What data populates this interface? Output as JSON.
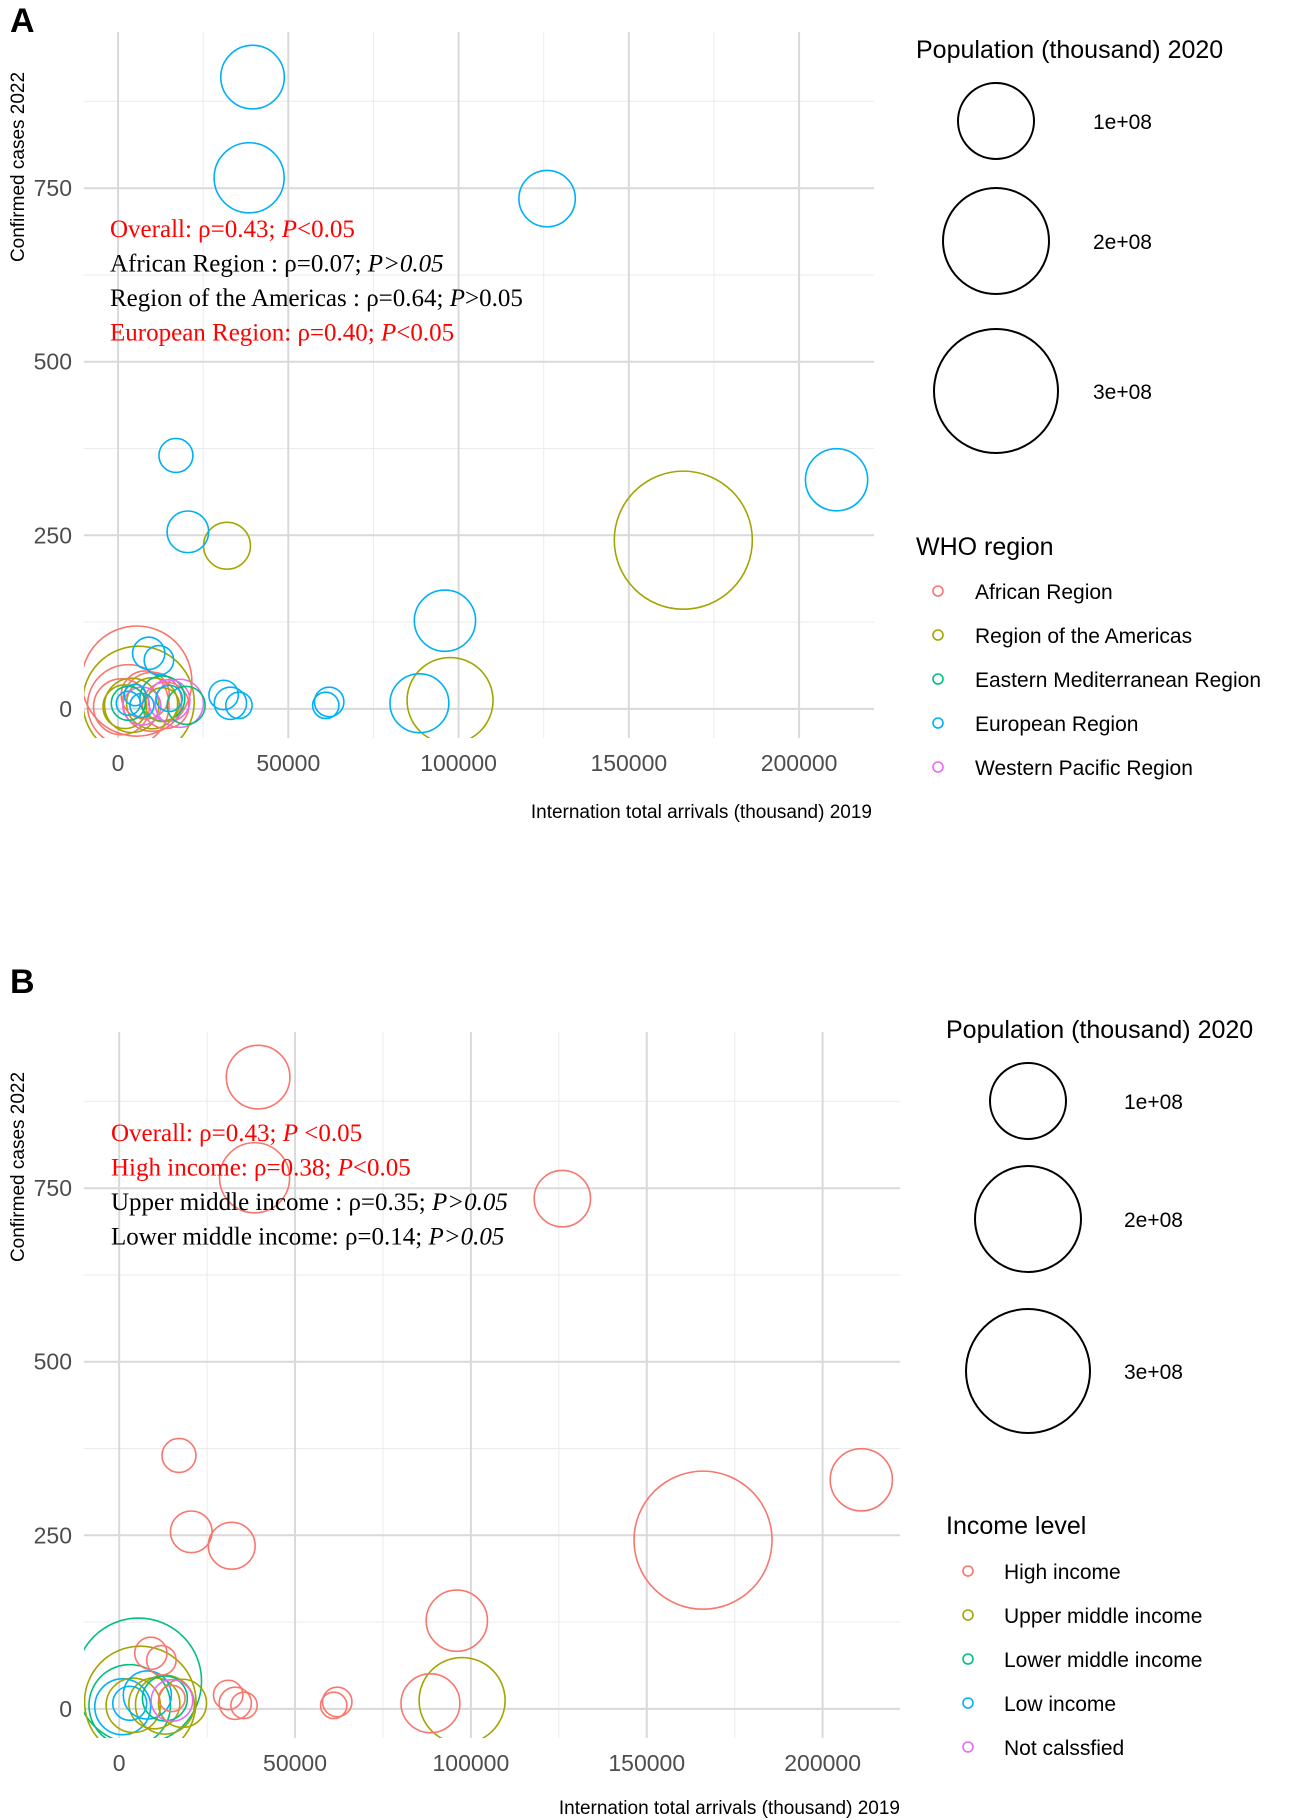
{
  "chart_data": [
    {
      "panel": "A",
      "type": "scatter",
      "xlabel": "Internation total arrivals (thousand) 2019",
      "ylabel": "Confirmed cases 2022",
      "xticks": [
        0,
        50000,
        100000,
        150000,
        200000
      ],
      "xtick_labels": [
        "0",
        "50000",
        "100000",
        "150000",
        "200000"
      ],
      "yticks": [
        0,
        250,
        500,
        750
      ],
      "ytick_labels": [
        "0",
        "250",
        "500",
        "750"
      ],
      "xlim": [
        -10000,
        222000
      ],
      "ylim": [
        -42,
        975
      ],
      "grid": true,
      "size_legend": {
        "title": "Population (thousand) 2020",
        "entries": [
          {
            "label": "1e+08",
            "value": 100000000
          },
          {
            "label": "2e+08",
            "value": 200000000
          },
          {
            "label": "3e+08",
            "value": 300000000
          }
        ]
      },
      "color_legend": {
        "title": "WHO region",
        "entries": [
          {
            "label": "African Region",
            "color": "#F8766D"
          },
          {
            "label": "Region of the Americas",
            "color": "#A3A500"
          },
          {
            "label": "Eastern Mediterranean Region",
            "color": "#00BF7D"
          },
          {
            "label": "European Region",
            "color": "#00B0F6"
          },
          {
            "label": "Western Pacific Region",
            "color": "#E76BF3"
          }
        ]
      },
      "annotations": [
        {
          "prefix": "Overall:  ρ=0.43; ",
          "p_label": "P",
          "suffix": "<0.05",
          "italic_suffix": false,
          "color": "#FF0000"
        },
        {
          "prefix": "African Region : ρ=0.07; ",
          "p_label": "P",
          "suffix": ">0.05",
          "italic_suffix": true,
          "color": "#000000"
        },
        {
          "prefix": "Region of the Americas : ρ=0.64; ",
          "p_label": "P",
          "suffix": ">0.05",
          "italic_suffix": false,
          "color": "#000000"
        },
        {
          "prefix": "European Region:  ρ=0.40; ",
          "p_label": "P",
          "suffix": "<0.05",
          "italic_suffix": false,
          "color": "#FF0000"
        }
      ],
      "points": [
        {
          "x": 39500,
          "y": 910,
          "pop": 70000000,
          "group": "European Region"
        },
        {
          "x": 38500,
          "y": 765,
          "pop": 85000000,
          "group": "European Region"
        },
        {
          "x": 126000,
          "y": 735,
          "pop": 55000000,
          "group": "European Region"
        },
        {
          "x": 211000,
          "y": 330,
          "pop": 67000000,
          "group": "European Region"
        },
        {
          "x": 17000,
          "y": 365,
          "pop": 20000000,
          "group": "European Region"
        },
        {
          "x": 20500,
          "y": 255,
          "pop": 30000000,
          "group": "European Region"
        },
        {
          "x": 96000,
          "y": 127,
          "pop": 65000000,
          "group": "European Region"
        },
        {
          "x": 88500,
          "y": 8,
          "pop": 60000000,
          "group": "European Region"
        },
        {
          "x": 61000,
          "y": 5,
          "pop": 12000000,
          "group": "European Region"
        },
        {
          "x": 62000,
          "y": 10,
          "pop": 15000000,
          "group": "European Region"
        },
        {
          "x": 31000,
          "y": 20,
          "pop": 15000000,
          "group": "European Region"
        },
        {
          "x": 33000,
          "y": 8,
          "pop": 18000000,
          "group": "European Region"
        },
        {
          "x": 35500,
          "y": 5,
          "pop": 12000000,
          "group": "European Region"
        },
        {
          "x": 9000,
          "y": 80,
          "pop": 18000000,
          "group": "European Region"
        },
        {
          "x": 12000,
          "y": 70,
          "pop": 15000000,
          "group": "European Region"
        },
        {
          "x": 15000,
          "y": 15,
          "pop": 12000000,
          "group": "European Region"
        },
        {
          "x": 7000,
          "y": 5,
          "pop": 10000000,
          "group": "European Region"
        },
        {
          "x": 3000,
          "y": 8,
          "pop": 10000000,
          "group": "European Region"
        },
        {
          "x": 5000,
          "y": 20,
          "pop": 8000000,
          "group": "European Region"
        },
        {
          "x": 166000,
          "y": 243,
          "pop": 330000000,
          "group": "Region of the Americas"
        },
        {
          "x": 97500,
          "y": 12,
          "pop": 128000000,
          "group": "Region of the Americas"
        },
        {
          "x": 32000,
          "y": 235,
          "pop": 38000000,
          "group": "Region of the Americas"
        },
        {
          "x": 6000,
          "y": 10,
          "pop": 215000000,
          "group": "Region of the Americas"
        },
        {
          "x": 4000,
          "y": 5,
          "pop": 51000000,
          "group": "Region of the Americas"
        },
        {
          "x": 10000,
          "y": 8,
          "pop": 45000000,
          "group": "Region of the Americas"
        },
        {
          "x": 2000,
          "y": 3,
          "pop": 33000000,
          "group": "Region of the Americas"
        },
        {
          "x": 13000,
          "y": 6,
          "pop": 20000000,
          "group": "Region of the Americas"
        },
        {
          "x": 5500,
          "y": 40,
          "pop": 210000000,
          "group": "African Region"
        },
        {
          "x": 10000,
          "y": 10,
          "pop": 60000000,
          "group": "African Region"
        },
        {
          "x": 3000,
          "y": 5,
          "pop": 115000000,
          "group": "African Region"
        },
        {
          "x": 1000,
          "y": 3,
          "pop": 54000000,
          "group": "African Region"
        },
        {
          "x": 8000,
          "y": 20,
          "pop": 40000000,
          "group": "African Region"
        },
        {
          "x": 14000,
          "y": 5,
          "pop": 37000000,
          "group": "African Region"
        },
        {
          "x": 20000,
          "y": 5,
          "pop": 25000000,
          "group": "Eastern Mediterranean Region"
        },
        {
          "x": 13000,
          "y": 15,
          "pop": 35000000,
          "group": "Eastern Mediterranean Region"
        },
        {
          "x": 3000,
          "y": 8,
          "pop": 20000000,
          "group": "Eastern Mediterranean Region"
        },
        {
          "x": 15000,
          "y": 12,
          "pop": 30000000,
          "group": "Western Pacific Region"
        },
        {
          "x": 18000,
          "y": 8,
          "pop": 40000000,
          "group": "Western Pacific Region"
        },
        {
          "x": 7000,
          "y": 4,
          "pop": 25000000,
          "group": "Western Pacific Region"
        }
      ]
    },
    {
      "panel": "B",
      "type": "scatter",
      "xlabel": "Internation total arrivals (thousand) 2019",
      "ylabel": "Confirmed cases 2022",
      "xticks": [
        0,
        50000,
        100000,
        150000,
        200000
      ],
      "xtick_labels": [
        "0",
        "50000",
        "100000",
        "150000",
        "200000"
      ],
      "yticks": [
        0,
        250,
        500,
        750
      ],
      "ytick_labels": [
        "0",
        "250",
        "500",
        "750"
      ],
      "xlim": [
        -10000,
        222000
      ],
      "ylim": [
        -42,
        975
      ],
      "grid": true,
      "size_legend": {
        "title": "Population (thousand) 2020",
        "entries": [
          {
            "label": "1e+08",
            "value": 100000000
          },
          {
            "label": "2e+08",
            "value": 200000000
          },
          {
            "label": "3e+08",
            "value": 300000000
          }
        ]
      },
      "color_legend": {
        "title": "Income level",
        "entries": [
          {
            "label": "High income",
            "color": "#F8766D"
          },
          {
            "label": "Upper middle income",
            "color": "#A3A500"
          },
          {
            "label": "Lower middle income",
            "color": "#00BF7D"
          },
          {
            "label": "Low income",
            "color": "#00B0F6"
          },
          {
            "label": "Not calssfied",
            "color": "#E76BF3"
          }
        ]
      },
      "annotations": [
        {
          "prefix": "Overall:  ρ=0.43; ",
          "p_label": "P",
          "suffix": " <0.05",
          "italic_suffix": false,
          "color": "#FF0000"
        },
        {
          "prefix": "High income: ρ=0.38; ",
          "p_label": "P",
          "suffix": "<0.05",
          "italic_suffix": false,
          "color": "#FF0000"
        },
        {
          "prefix": "Upper middle income : ρ=0.35; ",
          "p_label": "P",
          "suffix": ">0.05",
          "italic_suffix": true,
          "color": "#000000"
        },
        {
          "prefix": "Lower middle income: ρ=0.14; ",
          "p_label": "P",
          "suffix": ">0.05",
          "italic_suffix": true,
          "color": "#000000"
        }
      ],
      "points": [
        {
          "x": 39500,
          "y": 910,
          "pop": 70000000,
          "group": "High income"
        },
        {
          "x": 38500,
          "y": 765,
          "pop": 85000000,
          "group": "High income"
        },
        {
          "x": 126000,
          "y": 735,
          "pop": 55000000,
          "group": "High income"
        },
        {
          "x": 211000,
          "y": 330,
          "pop": 67000000,
          "group": "High income"
        },
        {
          "x": 17000,
          "y": 365,
          "pop": 20000000,
          "group": "High income"
        },
        {
          "x": 20500,
          "y": 255,
          "pop": 30000000,
          "group": "High income"
        },
        {
          "x": 32000,
          "y": 235,
          "pop": 38000000,
          "group": "High income"
        },
        {
          "x": 166000,
          "y": 243,
          "pop": 330000000,
          "group": "High income"
        },
        {
          "x": 96000,
          "y": 127,
          "pop": 65000000,
          "group": "High income"
        },
        {
          "x": 88500,
          "y": 8,
          "pop": 60000000,
          "group": "High income"
        },
        {
          "x": 61000,
          "y": 5,
          "pop": 12000000,
          "group": "High income"
        },
        {
          "x": 62000,
          "y": 10,
          "pop": 15000000,
          "group": "High income"
        },
        {
          "x": 31000,
          "y": 20,
          "pop": 15000000,
          "group": "High income"
        },
        {
          "x": 33000,
          "y": 8,
          "pop": 18000000,
          "group": "High income"
        },
        {
          "x": 35500,
          "y": 5,
          "pop": 12000000,
          "group": "High income"
        },
        {
          "x": 9000,
          "y": 80,
          "pop": 18000000,
          "group": "High income"
        },
        {
          "x": 12000,
          "y": 70,
          "pop": 15000000,
          "group": "High income"
        },
        {
          "x": 15000,
          "y": 15,
          "pop": 12000000,
          "group": "High income"
        },
        {
          "x": 97500,
          "y": 12,
          "pop": 128000000,
          "group": "Upper middle income"
        },
        {
          "x": 6000,
          "y": 10,
          "pop": 215000000,
          "group": "Upper middle income"
        },
        {
          "x": 4000,
          "y": 5,
          "pop": 51000000,
          "group": "Upper middle income"
        },
        {
          "x": 10000,
          "y": 8,
          "pop": 45000000,
          "group": "Upper middle income"
        },
        {
          "x": 13000,
          "y": 6,
          "pop": 60000000,
          "group": "Upper middle income"
        },
        {
          "x": 18000,
          "y": 8,
          "pop": 40000000,
          "group": "Upper middle income"
        },
        {
          "x": 5500,
          "y": 40,
          "pop": 275000000,
          "group": "Lower middle income"
        },
        {
          "x": 3000,
          "y": 5,
          "pop": 115000000,
          "group": "Lower middle income"
        },
        {
          "x": 13000,
          "y": 15,
          "pop": 35000000,
          "group": "Lower middle income"
        },
        {
          "x": 1000,
          "y": 3,
          "pop": 54000000,
          "group": "Low income"
        },
        {
          "x": 8000,
          "y": 20,
          "pop": 40000000,
          "group": "Low income"
        },
        {
          "x": 3000,
          "y": 8,
          "pop": 20000000,
          "group": "Low income"
        },
        {
          "x": 15000,
          "y": 12,
          "pop": 30000000,
          "group": "Not calssfied"
        }
      ]
    }
  ]
}
